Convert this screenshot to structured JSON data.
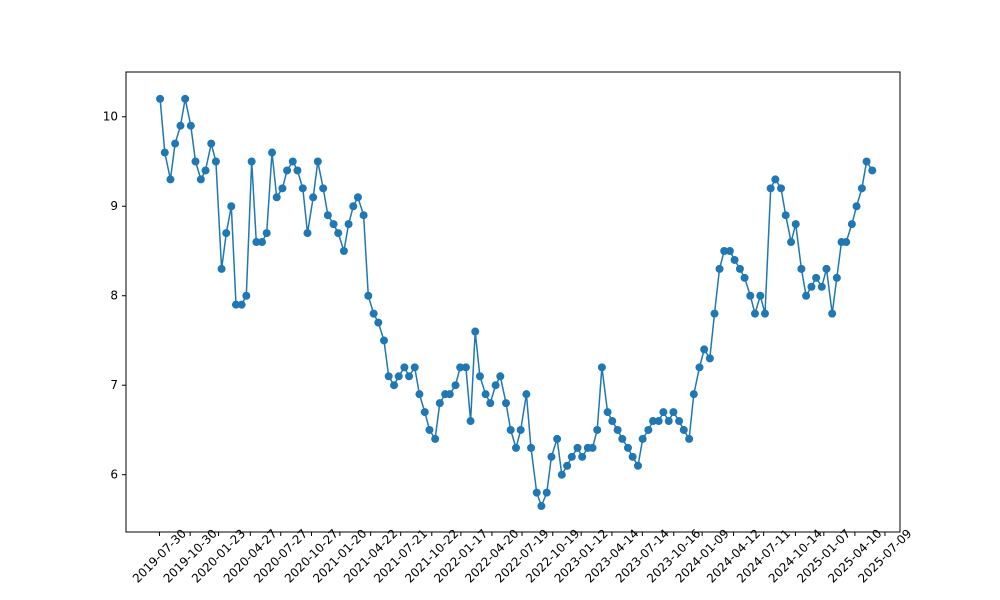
{
  "chart_data": {
    "type": "line",
    "color": "#1f77b4",
    "markers": true,
    "xlim": [
      "2019-04-21",
      "2025-08-23"
    ],
    "xticks": [
      "2019-07-30",
      "2019-10-30",
      "2020-01-23",
      "2020-04-27",
      "2020-07-27",
      "2020-10-27",
      "2021-01-20",
      "2021-04-22",
      "2021-07-21",
      "2021-10-22",
      "2022-01-17",
      "2022-04-20",
      "2022-07-19",
      "2022-10-19",
      "2023-01-12",
      "2023-04-14",
      "2023-07-14",
      "2023-10-16",
      "2024-01-09",
      "2024-04-12",
      "2024-07-11",
      "2024-10-14",
      "2025-01-07",
      "2025-04-10",
      "2025-07-09"
    ],
    "ylim": [
      5.36,
      10.5
    ],
    "yticks": [
      6,
      7,
      8,
      9,
      10
    ],
    "x": [
      "2019-08-01",
      "2019-08-15",
      "2019-09-01",
      "2019-09-15",
      "2019-10-01",
      "2019-10-15",
      "2019-11-01",
      "2019-11-15",
      "2019-12-01",
      "2019-12-15",
      "2020-01-01",
      "2020-01-15",
      "2020-02-01",
      "2020-02-15",
      "2020-03-01",
      "2020-03-15",
      "2020-04-01",
      "2020-04-15",
      "2020-05-01",
      "2020-05-15",
      "2020-06-01",
      "2020-06-15",
      "2020-07-01",
      "2020-07-15",
      "2020-08-01",
      "2020-08-15",
      "2020-09-01",
      "2020-09-15",
      "2020-10-01",
      "2020-10-15",
      "2020-11-01",
      "2020-11-15",
      "2020-12-01",
      "2020-12-15",
      "2021-01-01",
      "2021-01-15",
      "2021-02-01",
      "2021-02-15",
      "2021-03-01",
      "2021-03-15",
      "2021-04-01",
      "2021-04-15",
      "2021-05-01",
      "2021-05-15",
      "2021-06-01",
      "2021-06-15",
      "2021-07-01",
      "2021-07-15",
      "2021-08-01",
      "2021-08-15",
      "2021-09-01",
      "2021-09-15",
      "2021-10-01",
      "2021-10-15",
      "2021-11-01",
      "2021-11-15",
      "2021-12-01",
      "2021-12-15",
      "2022-01-01",
      "2022-01-15",
      "2022-02-01",
      "2022-02-15",
      "2022-03-01",
      "2022-03-15",
      "2022-04-01",
      "2022-04-15",
      "2022-05-01",
      "2022-05-15",
      "2022-06-01",
      "2022-06-15",
      "2022-07-01",
      "2022-07-15",
      "2022-08-01",
      "2022-08-15",
      "2022-09-01",
      "2022-09-15",
      "2022-10-01",
      "2022-10-15",
      "2022-11-01",
      "2022-11-15",
      "2022-12-01",
      "2022-12-15",
      "2023-01-01",
      "2023-01-15",
      "2023-02-01",
      "2023-02-15",
      "2023-03-01",
      "2023-03-15",
      "2023-04-01",
      "2023-04-15",
      "2023-05-01",
      "2023-05-15",
      "2023-06-01",
      "2023-06-15",
      "2023-07-01",
      "2023-07-15",
      "2023-08-01",
      "2023-08-15",
      "2023-09-01",
      "2023-09-15",
      "2023-10-01",
      "2023-10-15",
      "2023-11-01",
      "2023-11-15",
      "2023-12-01",
      "2023-12-15",
      "2024-01-01",
      "2024-01-15",
      "2024-02-01",
      "2024-02-15",
      "2024-03-01",
      "2024-03-15",
      "2024-04-01",
      "2024-04-15",
      "2024-05-01",
      "2024-05-15",
      "2024-06-01",
      "2024-06-15",
      "2024-07-01",
      "2024-07-15",
      "2024-08-01",
      "2024-08-15",
      "2024-09-01",
      "2024-09-15",
      "2024-10-01",
      "2024-10-15",
      "2024-11-01",
      "2024-11-15",
      "2024-12-01",
      "2024-12-15",
      "2025-01-01",
      "2025-01-15",
      "2025-02-01",
      "2025-02-15",
      "2025-03-01",
      "2025-03-15",
      "2025-04-01",
      "2025-04-15",
      "2025-05-01",
      "2025-05-15",
      "2025-06-01"
    ],
    "values": [
      10.2,
      9.6,
      9.3,
      9.7,
      9.9,
      10.2,
      9.9,
      9.5,
      9.3,
      9.4,
      9.7,
      9.5,
      8.3,
      8.7,
      9.0,
      7.9,
      7.9,
      8.0,
      9.5,
      8.6,
      8.6,
      8.7,
      9.6,
      9.1,
      9.2,
      9.4,
      9.5,
      9.4,
      9.2,
      8.7,
      9.1,
      9.5,
      9.2,
      8.9,
      8.8,
      8.7,
      8.5,
      8.8,
      9.0,
      9.1,
      8.9,
      8.0,
      7.8,
      7.7,
      7.5,
      7.1,
      7.0,
      7.1,
      7.2,
      7.1,
      7.2,
      6.9,
      6.7,
      6.5,
      6.4,
      6.8,
      6.9,
      6.9,
      7.0,
      7.2,
      7.2,
      6.6,
      7.6,
      7.1,
      6.9,
      6.8,
      7.0,
      7.1,
      6.8,
      6.5,
      6.3,
      6.5,
      6.9,
      6.3,
      5.8,
      5.65,
      5.8,
      6.2,
      6.4,
      6.0,
      6.1,
      6.2,
      6.3,
      6.2,
      6.3,
      6.3,
      6.5,
      7.2,
      6.7,
      6.6,
      6.5,
      6.4,
      6.3,
      6.2,
      6.1,
      6.4,
      6.5,
      6.6,
      6.6,
      6.7,
      6.6,
      6.7,
      6.6,
      6.5,
      6.4,
      6.9,
      7.2,
      7.4,
      7.3,
      7.8,
      8.3,
      8.5,
      8.5,
      8.4,
      8.3,
      8.2,
      8.0,
      7.8,
      8.0,
      7.8,
      9.2,
      9.3,
      9.2,
      8.9,
      8.6,
      8.8,
      8.3,
      8.0,
      8.1,
      8.2,
      8.1,
      8.3,
      7.8,
      8.2,
      8.6,
      8.6,
      8.8,
      9.0,
      9.2,
      9.5,
      9.4
    ]
  }
}
